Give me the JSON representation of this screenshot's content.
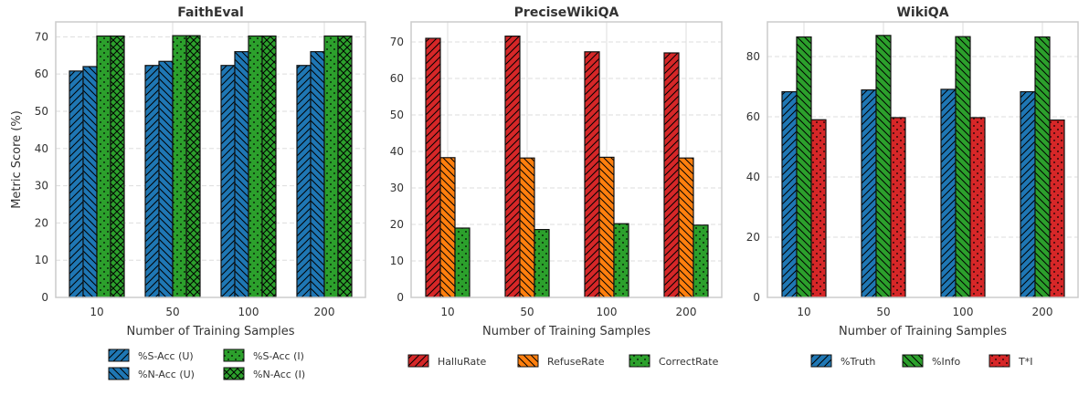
{
  "chart_data": [
    {
      "type": "bar",
      "title": "FaithEval",
      "xlabel": "Number of Training Samples",
      "ylabel": "Metric Score (%)",
      "categories": [
        "10",
        "50",
        "100",
        "200"
      ],
      "ylim": [
        0,
        74
      ],
      "yticks": [
        0,
        10,
        20,
        30,
        40,
        50,
        60,
        70
      ],
      "grid": true,
      "legend_position": "bottom",
      "series": [
        {
          "name": "%S-Acc (U)",
          "color": "#1f77b4",
          "hatch": "/",
          "values": [
            60.8,
            62.3,
            62.3,
            62.3
          ]
        },
        {
          "name": "%N-Acc (U)",
          "color": "#1f77b4",
          "hatch": "\\",
          "values": [
            62.0,
            63.4,
            66.0,
            66.0
          ]
        },
        {
          "name": "%S-Acc (I)",
          "color": "#2ca02c",
          "hatch": ".",
          "values": [
            70.2,
            70.3,
            70.2,
            70.2
          ]
        },
        {
          "name": "%N-Acc (I)",
          "color": "#2ca02c",
          "hatch": "x",
          "values": [
            70.2,
            70.3,
            70.2,
            70.2
          ]
        }
      ]
    },
    {
      "type": "bar",
      "title": "PreciseWikiQA",
      "xlabel": "Number of Training Samples",
      "ylabel": "",
      "categories": [
        "10",
        "50",
        "100",
        "200"
      ],
      "ylim": [
        0,
        75.5
      ],
      "yticks": [
        0,
        10,
        20,
        30,
        40,
        50,
        60,
        70
      ],
      "grid": true,
      "legend_position": "bottom",
      "series": [
        {
          "name": "HalluRate",
          "color": "#d62728",
          "hatch": "/",
          "values": [
            71.0,
            71.6,
            67.3,
            67.0
          ]
        },
        {
          "name": "RefuseRate",
          "color": "#ff7f0e",
          "hatch": "\\",
          "values": [
            38.3,
            38.2,
            38.4,
            38.2
          ]
        },
        {
          "name": "CorrectRate",
          "color": "#2ca02c",
          "hatch": ".",
          "values": [
            19.0,
            18.6,
            20.2,
            19.8
          ]
        }
      ]
    },
    {
      "type": "bar",
      "title": "WikiQA",
      "xlabel": "Number of Training Samples",
      "ylabel": "",
      "categories": [
        "10",
        "50",
        "100",
        "200"
      ],
      "ylim": [
        0,
        91.5
      ],
      "yticks": [
        0,
        20,
        40,
        60,
        80
      ],
      "grid": true,
      "legend_position": "bottom",
      "series": [
        {
          "name": "%Truth",
          "color": "#1f77b4",
          "hatch": "/",
          "values": [
            68.3,
            68.9,
            69.1,
            68.3
          ]
        },
        {
          "name": "%Info",
          "color": "#2ca02c",
          "hatch": "\\",
          "values": [
            86.5,
            87.0,
            86.6,
            86.5
          ]
        },
        {
          "name": "T*I",
          "color": "#d62728",
          "hatch": ".",
          "values": [
            59.0,
            59.7,
            59.7,
            58.9
          ]
        }
      ]
    }
  ]
}
